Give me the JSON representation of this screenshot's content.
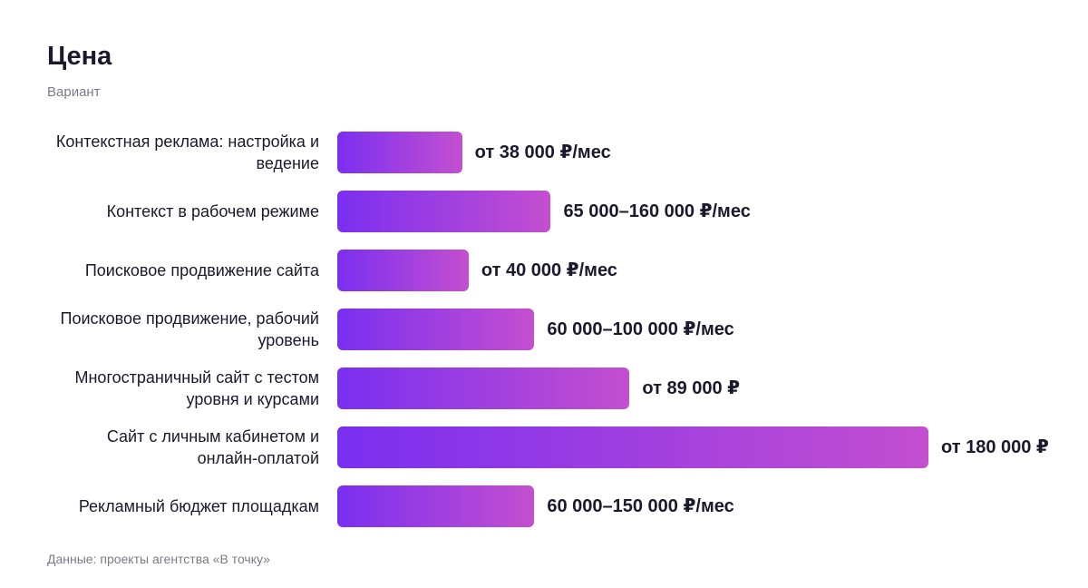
{
  "chart_data": {
    "type": "bar",
    "orientation": "horizontal",
    "title": "Цена",
    "subtitle": "Вариант",
    "categories": [
      "Контекстная реклама: настройка и ведение",
      "Контекст в рабочем режиме",
      "Поисковое продвижение сайта",
      "Поисковое продвижение, рабочий уровень",
      "Многостраничный сайт с тестом уровня и курсами",
      "Сайт с личным кабинетом и онлайн-оплатой",
      "Рекламный бюджет площадкам"
    ],
    "values": [
      38000,
      65000,
      40000,
      60000,
      89000,
      180000,
      60000
    ],
    "value_labels": [
      "от 38 000 ₽/мес",
      "65 000–160 000 ₽/мес",
      "от 40 000 ₽/мес",
      "60 000–100 000 ₽/мес",
      "от 89 000 ₽",
      "от 180 000 ₽",
      "60 000–150 000 ₽/мес"
    ],
    "gradient": [
      "#7a2ff0",
      "#c44fd0"
    ],
    "source": "Данные: проекты агентства «В точку»"
  }
}
